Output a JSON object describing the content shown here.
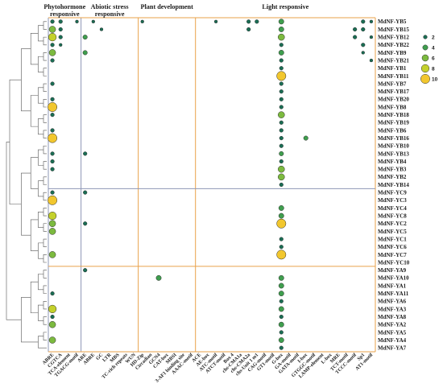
{
  "chart_data": {
    "type": "scatter",
    "title": "",
    "xlabel": "",
    "ylabel": "",
    "categories_x": [
      "ABRE",
      "CGTCA",
      "TCA-element",
      "TGACG-motif",
      "ARE",
      "ABRE",
      "GC",
      "LTR",
      "MBS",
      "TC-rich repeats",
      "WUN",
      "HD-Zip",
      "Circadian",
      "GCN4",
      "CAT-box",
      "MBSI",
      "3-AF1 binding site",
      "AAAC-motif",
      "ACE",
      "AE-box",
      "ATC-motif",
      "ATCT-motif",
      "Box 4",
      "chs-CMA1a",
      "chs-CMA2a",
      "chs-Unit 1 m1",
      "CAG-motif",
      "GT1-motif",
      "G-box",
      "GA-motif",
      "GATA-motif",
      "I-box",
      "GTGGC-motif",
      "LAMP-element",
      "L-box",
      "MRE",
      "TCT-motif",
      "TCCC-motif",
      "Sp1",
      "AT1-motif"
    ],
    "categories_y": [
      "MdNF-YB5",
      "MdNF-YB15",
      "MdNF-YB12",
      "MdNF-YB22",
      "MdNF-YB9",
      "MdNF-YB21",
      "MdNF-YB1",
      "MdNF-YB11",
      "MdNF-YB7",
      "MdNF-YB17",
      "MdNF-YB20",
      "MdNF-YB8",
      "MdNF-YB18",
      "MdNF-YB19",
      "MdNF-YB6",
      "MdNF-YB16",
      "MdNF-YB10",
      "MdNF-YB13",
      "MdNF-YB4",
      "MdNF-YB3",
      "MdNF-YB2",
      "MdNF-YB14",
      "MdNF-YC9",
      "MdNF-YC3",
      "MdNF-YC4",
      "MdNF-YC8",
      "MdNF-YC2",
      "MdNF-YC5",
      "MdNF-YC1",
      "MdNF-YC6",
      "MdNF-YC7",
      "MdNF-YC10",
      "MdNF-YA9",
      "MdNF-YA10",
      "MdNF-YA1",
      "MdNF-YA11",
      "MdNF-YA6",
      "MdNF-YA3",
      "MdNF-YA8",
      "MdNF-YA2",
      "MdNF-YA5",
      "MdNF-YA4",
      "MdNF-YA7"
    ],
    "groups": [
      {
        "label": "Phytohormone\nresponsive",
        "columns": [
          0,
          3
        ]
      },
      {
        "label": "Abiotic stress\nresponsive",
        "columns": [
          4,
          10
        ]
      },
      {
        "label": "Plant development",
        "columns": [
          11,
          17
        ]
      },
      {
        "label": "Light responsive",
        "columns": [
          18,
          39
        ]
      }
    ],
    "row_groups": [
      "NF-YB",
      "NF-YC",
      "NF-YA"
    ],
    "legend": {
      "values": [
        2,
        4,
        6,
        8,
        10
      ],
      "labels": [
        "2",
        "4",
        "6",
        "8",
        "10"
      ],
      "colors": [
        "#1a6e54",
        "#3f9e4e",
        "#7cba3f",
        "#c4d12c",
        "#f2c72e"
      ],
      "placement": "right"
    },
    "colors": {
      "dot_outline": "#2b2b2b",
      "separator_blue": "#8e97b6",
      "separator_orange": "#e9a24a"
    },
    "points": [
      {
        "x": "ABRE",
        "y": "MdNF-YB5",
        "value": 2
      },
      {
        "x": "CGTCA",
        "y": "MdNF-YB5",
        "value": 2
      },
      {
        "x": "TGACG-motif",
        "y": "MdNF-YB5",
        "value": 1
      },
      {
        "x": "ABRE",
        "y": "MdNF-YB5",
        "value": 1
      },
      {
        "x": "HD-Zip",
        "y": "MdNF-YB5",
        "value": 1
      },
      {
        "x": "ATC-motif",
        "y": "MdNF-YB5",
        "value": 1
      },
      {
        "x": "chs-CMA2a",
        "y": "MdNF-YB5",
        "value": 2
      },
      {
        "x": "chs-Unit 1 m1",
        "y": "MdNF-YB5",
        "value": 2
      },
      {
        "x": "G-box",
        "y": "MdNF-YB5",
        "value": 4
      },
      {
        "x": "Sp1",
        "y": "MdNF-YB5",
        "value": 2
      },
      {
        "x": "AT1-motif",
        "y": "MdNF-YB5",
        "value": 1
      },
      {
        "x": "ABRE",
        "y": "MdNF-YB15",
        "value": 6
      },
      {
        "x": "CGTCA",
        "y": "MdNF-YB15",
        "value": 2
      },
      {
        "x": "GC",
        "y": "MdNF-YB15",
        "value": 1
      },
      {
        "x": "chs-CMA2a",
        "y": "MdNF-YB15",
        "value": 2
      },
      {
        "x": "G-box",
        "y": "MdNF-YB15",
        "value": 4
      },
      {
        "x": "TCCC-motif",
        "y": "MdNF-YB15",
        "value": 2
      },
      {
        "x": "Sp1",
        "y": "MdNF-YB15",
        "value": 2
      },
      {
        "x": "ABRE",
        "y": "MdNF-YB12",
        "value": 8
      },
      {
        "x": "CGTCA",
        "y": "MdNF-YB12",
        "value": 2
      },
      {
        "x": "ARE",
        "y": "MdNF-YB12",
        "value": 3
      },
      {
        "x": "G-box",
        "y": "MdNF-YB12",
        "value": 6
      },
      {
        "x": "TCCC-motif",
        "y": "MdNF-YB12",
        "value": 2
      },
      {
        "x": "AT1-motif",
        "y": "MdNF-YB12",
        "value": 1
      },
      {
        "x": "ABRE",
        "y": "MdNF-YB22",
        "value": 2
      },
      {
        "x": "CGTCA",
        "y": "MdNF-YB22",
        "value": 1
      },
      {
        "x": "G-box",
        "y": "MdNF-YB22",
        "value": 2
      },
      {
        "x": "Sp1",
        "y": "MdNF-YB22",
        "value": 2
      },
      {
        "x": "ABRE",
        "y": "MdNF-YB9",
        "value": 6
      },
      {
        "x": "ARE",
        "y": "MdNF-YB9",
        "value": 3
      },
      {
        "x": "G-box",
        "y": "MdNF-YB9",
        "value": 4
      },
      {
        "x": "Sp1",
        "y": "MdNF-YB9",
        "value": 1
      },
      {
        "x": "ABRE",
        "y": "MdNF-YB21",
        "value": 2
      },
      {
        "x": "G-box",
        "y": "MdNF-YB21",
        "value": 2
      },
      {
        "x": "AT1-motif",
        "y": "MdNF-YB21",
        "value": 1
      },
      {
        "x": "G-box",
        "y": "MdNF-YB1",
        "value": 2
      },
      {
        "x": "G-box",
        "y": "MdNF-YB11",
        "value": 10
      },
      {
        "x": "ABRE",
        "y": "MdNF-YB7",
        "value": 2
      },
      {
        "x": "G-box",
        "y": "MdNF-YB7",
        "value": 2
      },
      {
        "x": "G-box",
        "y": "MdNF-YB17",
        "value": 2
      },
      {
        "x": "ABRE",
        "y": "MdNF-YB20",
        "value": 2
      },
      {
        "x": "G-box",
        "y": "MdNF-YB20",
        "value": 2
      },
      {
        "x": "ABRE",
        "y": "MdNF-YB8",
        "value": 10
      },
      {
        "x": "G-box",
        "y": "MdNF-YB8",
        "value": 2
      },
      {
        "x": "ABRE",
        "y": "MdNF-YB18",
        "value": 2
      },
      {
        "x": "G-box",
        "y": "MdNF-YB18",
        "value": 6
      },
      {
        "x": "G-box",
        "y": "MdNF-YB19",
        "value": 2
      },
      {
        "x": "ABRE",
        "y": "MdNF-YB6",
        "value": 2
      },
      {
        "x": "G-box",
        "y": "MdNF-YB6",
        "value": 2
      },
      {
        "x": "ABRE",
        "y": "MdNF-YB16",
        "value": 10
      },
      {
        "x": "G-box",
        "y": "MdNF-YB16",
        "value": 2
      },
      {
        "x": "I-box",
        "y": "MdNF-YB16",
        "value": 3
      },
      {
        "x": "G-box",
        "y": "MdNF-YB10",
        "value": 2
      },
      {
        "x": "ABRE",
        "y": "MdNF-YB13",
        "value": 2
      },
      {
        "x": "ARE",
        "y": "MdNF-YB13",
        "value": 2
      },
      {
        "x": "G-box",
        "y": "MdNF-YB13",
        "value": 3
      },
      {
        "x": "ABRE",
        "y": "MdNF-YB4",
        "value": 2
      },
      {
        "x": "G-box",
        "y": "MdNF-YB4",
        "value": 2
      },
      {
        "x": "ABRE",
        "y": "MdNF-YB3",
        "value": 2
      },
      {
        "x": "G-box",
        "y": "MdNF-YB3",
        "value": 6
      },
      {
        "x": "G-box",
        "y": "MdNF-YB2",
        "value": 6
      },
      {
        "x": "G-box",
        "y": "MdNF-YB14",
        "value": 2
      },
      {
        "x": "ABRE",
        "y": "MdNF-YC9",
        "value": 2
      },
      {
        "x": "ARE",
        "y": "MdNF-YC9",
        "value": 2
      },
      {
        "x": "ABRE",
        "y": "MdNF-YC3",
        "value": 10
      },
      {
        "x": "G-box",
        "y": "MdNF-YC4",
        "value": 4
      },
      {
        "x": "ABRE",
        "y": "MdNF-YC8",
        "value": 8
      },
      {
        "x": "G-box",
        "y": "MdNF-YC8",
        "value": 4
      },
      {
        "x": "ABRE",
        "y": "MdNF-YC2",
        "value": 6
      },
      {
        "x": "ARE",
        "y": "MdNF-YC2",
        "value": 2
      },
      {
        "x": "G-box",
        "y": "MdNF-YC2",
        "value": 10
      },
      {
        "x": "ABRE",
        "y": "MdNF-YC5",
        "value": 6
      },
      {
        "x": "G-box",
        "y": "MdNF-YC1",
        "value": 2
      },
      {
        "x": "G-box",
        "y": "MdNF-YC6",
        "value": 2
      },
      {
        "x": "ABRE",
        "y": "MdNF-YC7",
        "value": 6
      },
      {
        "x": "G-box",
        "y": "MdNF-YC7",
        "value": 10
      },
      {
        "x": "ARE",
        "y": "MdNF-YA9",
        "value": 2
      },
      {
        "x": "GCN4",
        "y": "MdNF-YA10",
        "value": 4
      },
      {
        "x": "G-box",
        "y": "MdNF-YA10",
        "value": 4
      },
      {
        "x": "G-box",
        "y": "MdNF-YA1",
        "value": 4
      },
      {
        "x": "ABRE",
        "y": "MdNF-YA11",
        "value": 2
      },
      {
        "x": "G-box",
        "y": "MdNF-YA11",
        "value": 4
      },
      {
        "x": "G-box",
        "y": "MdNF-YA6",
        "value": 2
      },
      {
        "x": "ABRE",
        "y": "MdNF-YA3",
        "value": 8
      },
      {
        "x": "G-box",
        "y": "MdNF-YA3",
        "value": 4
      },
      {
        "x": "ABRE",
        "y": "MdNF-YA8",
        "value": 2
      },
      {
        "x": "G-box",
        "y": "MdNF-YA8",
        "value": 2
      },
      {
        "x": "ABRE",
        "y": "MdNF-YA2",
        "value": 6
      },
      {
        "x": "G-box",
        "y": "MdNF-YA2",
        "value": 4
      },
      {
        "x": "G-box",
        "y": "MdNF-YA5",
        "value": 2
      },
      {
        "x": "ABRE",
        "y": "MdNF-YA4",
        "value": 6
      },
      {
        "x": "G-box",
        "y": "MdNF-YA4",
        "value": 4
      },
      {
        "x": "G-box",
        "y": "MdNF-YA7",
        "value": 2
      }
    ]
  }
}
